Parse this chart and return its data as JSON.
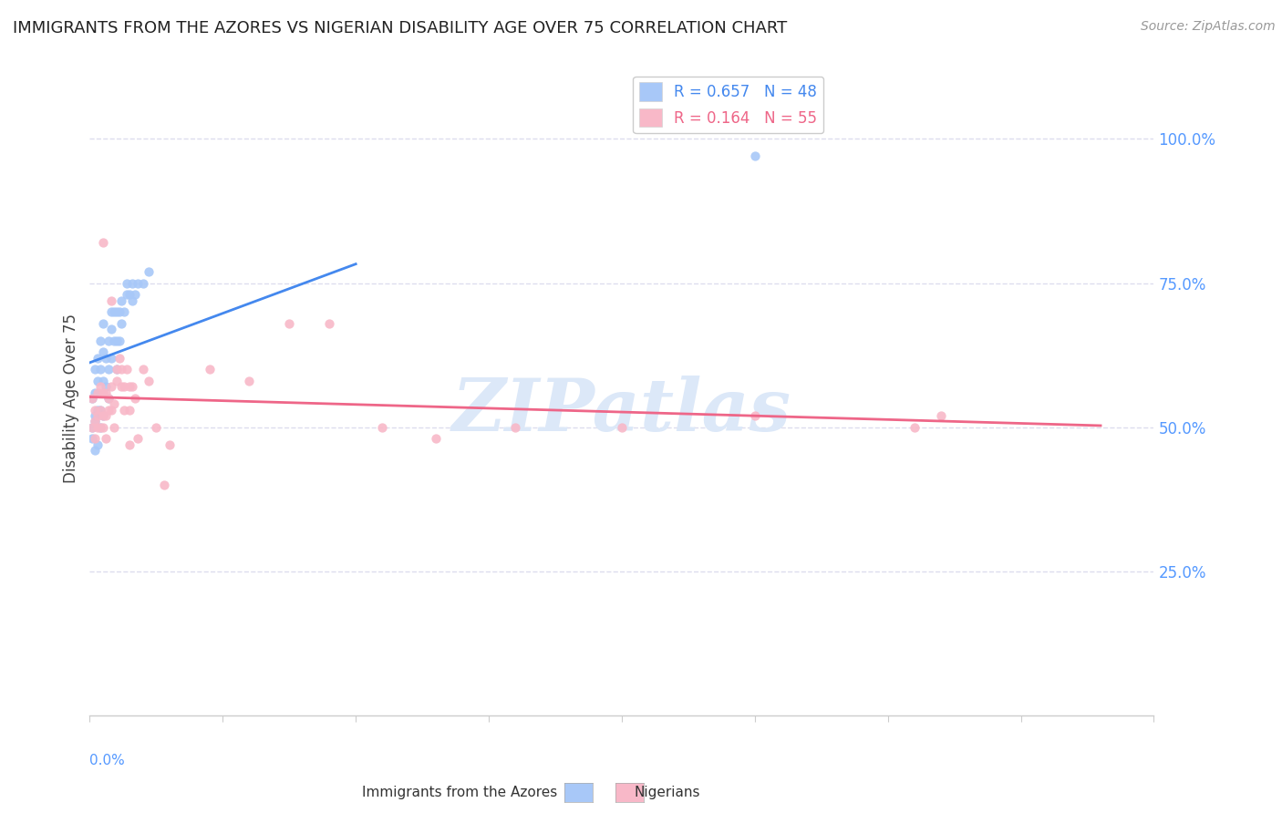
{
  "title": "IMMIGRANTS FROM THE AZORES VS NIGERIAN DISABILITY AGE OVER 75 CORRELATION CHART",
  "source": "Source: ZipAtlas.com",
  "ylabel": "Disability Age Over 75",
  "legend_1_label": "R = 0.657   N = 48",
  "legend_2_label": "R = 0.164   N = 55",
  "legend_color_1": "#a8c8f8",
  "legend_color_2": "#f8b8c8",
  "watermark": "ZIPatlas",
  "watermark_color": "#dce8f8",
  "title_fontsize": 13,
  "source_fontsize": 10,
  "azores_x": [
    0.001,
    0.001,
    0.001,
    0.002,
    0.002,
    0.002,
    0.002,
    0.002,
    0.003,
    0.003,
    0.003,
    0.003,
    0.004,
    0.004,
    0.004,
    0.004,
    0.005,
    0.005,
    0.005,
    0.005,
    0.006,
    0.006,
    0.007,
    0.007,
    0.007,
    0.008,
    0.008,
    0.008,
    0.009,
    0.009,
    0.01,
    0.01,
    0.01,
    0.011,
    0.011,
    0.012,
    0.012,
    0.013,
    0.014,
    0.014,
    0.015,
    0.016,
    0.016,
    0.017,
    0.018,
    0.02,
    0.022,
    0.25
  ],
  "azores_y": [
    0.5,
    0.55,
    0.48,
    0.51,
    0.56,
    0.6,
    0.52,
    0.46,
    0.53,
    0.58,
    0.62,
    0.47,
    0.53,
    0.6,
    0.65,
    0.5,
    0.52,
    0.58,
    0.63,
    0.68,
    0.57,
    0.62,
    0.55,
    0.6,
    0.65,
    0.62,
    0.67,
    0.7,
    0.65,
    0.7,
    0.6,
    0.65,
    0.7,
    0.65,
    0.7,
    0.68,
    0.72,
    0.7,
    0.73,
    0.75,
    0.73,
    0.72,
    0.75,
    0.73,
    0.75,
    0.75,
    0.77,
    0.97
  ],
  "nigerian_x": [
    0.001,
    0.001,
    0.002,
    0.002,
    0.002,
    0.003,
    0.003,
    0.003,
    0.004,
    0.004,
    0.004,
    0.005,
    0.005,
    0.005,
    0.006,
    0.006,
    0.006,
    0.007,
    0.007,
    0.008,
    0.008,
    0.009,
    0.009,
    0.01,
    0.01,
    0.011,
    0.012,
    0.012,
    0.013,
    0.013,
    0.014,
    0.015,
    0.015,
    0.016,
    0.017,
    0.018,
    0.02,
    0.022,
    0.025,
    0.028,
    0.03,
    0.045,
    0.06,
    0.09,
    0.11,
    0.13,
    0.16,
    0.2,
    0.25,
    0.31,
    0.005,
    0.008,
    0.015,
    0.075,
    0.32
  ],
  "nigerian_y": [
    0.5,
    0.55,
    0.51,
    0.53,
    0.48,
    0.52,
    0.56,
    0.5,
    0.53,
    0.57,
    0.5,
    0.52,
    0.56,
    0.5,
    0.52,
    0.56,
    0.48,
    0.55,
    0.53,
    0.53,
    0.57,
    0.5,
    0.54,
    0.6,
    0.58,
    0.62,
    0.57,
    0.6,
    0.53,
    0.57,
    0.6,
    0.57,
    0.53,
    0.57,
    0.55,
    0.48,
    0.6,
    0.58,
    0.5,
    0.4,
    0.47,
    0.6,
    0.58,
    0.68,
    0.5,
    0.48,
    0.5,
    0.5,
    0.52,
    0.5,
    0.82,
    0.72,
    0.47,
    0.68,
    0.52
  ],
  "azores_dot_color": "#a8c8f8",
  "nigerian_dot_color": "#f8b8c8",
  "azores_line_color": "#4488ee",
  "nigerian_line_color": "#ee6688",
  "xlim_min": 0.0,
  "xlim_max": 0.4,
  "ylim_min": 0.0,
  "ylim_max": 1.1,
  "right_ytick_vals": [
    0.25,
    0.5,
    0.75,
    1.0
  ],
  "right_ytick_labels": [
    "25.0%",
    "50.0%",
    "75.0%",
    "100.0%"
  ],
  "background_color": "#ffffff",
  "grid_color": "#ddddee",
  "tick_color": "#5599ff",
  "axis_color": "#cccccc",
  "label_color": "#444444"
}
